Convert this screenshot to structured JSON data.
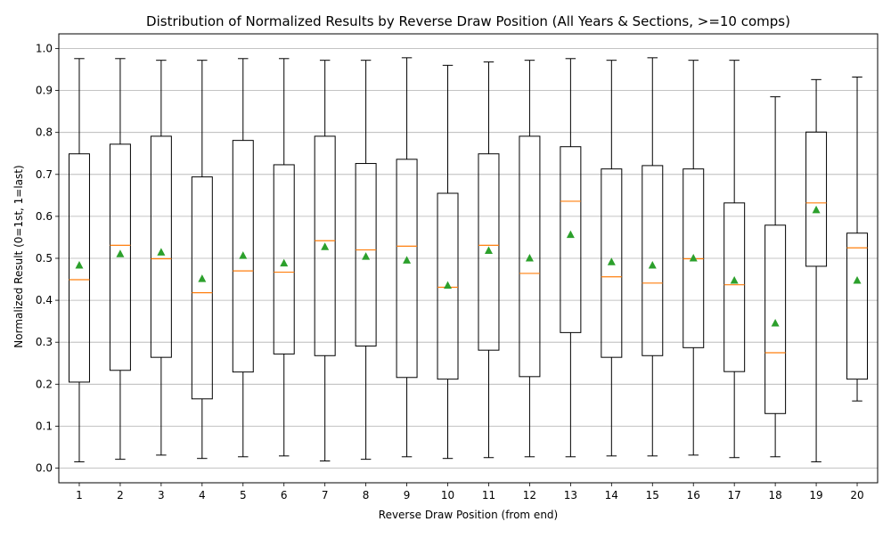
{
  "chart_data": {
    "type": "box",
    "title": "Distribution of Normalized Results by Reverse Draw Position (All Years & Sections, >=10 comps)",
    "xlabel": "Reverse Draw Position (from end)",
    "ylabel": "Normalized Result (0=1st, 1=last)",
    "ylim": [
      -0.035,
      1.035
    ],
    "yticks": [
      "0.0",
      "0.1",
      "0.2",
      "0.3",
      "0.4",
      "0.5",
      "0.6",
      "0.7",
      "0.8",
      "0.9",
      "1.0"
    ],
    "grid": "horizontal",
    "colors": {
      "box": "#000000",
      "median": "#ff7f0e",
      "mean": "#2ca02c",
      "grid": "#b0b0b0"
    },
    "categories": [
      "1",
      "2",
      "3",
      "4",
      "5",
      "6",
      "7",
      "8",
      "9",
      "10",
      "11",
      "12",
      "13",
      "14",
      "15",
      "16",
      "17",
      "18",
      "19",
      "20"
    ],
    "boxes": [
      {
        "whisker_low": 0.015,
        "q1": 0.205,
        "median": 0.449,
        "q3": 0.749,
        "whisker_high": 0.976,
        "mean": 0.483
      },
      {
        "whisker_low": 0.021,
        "q1": 0.233,
        "median": 0.531,
        "q3": 0.772,
        "whisker_high": 0.976,
        "mean": 0.51
      },
      {
        "whisker_low": 0.031,
        "q1": 0.264,
        "median": 0.499,
        "q3": 0.791,
        "whisker_high": 0.972,
        "mean": 0.514
      },
      {
        "whisker_low": 0.023,
        "q1": 0.165,
        "median": 0.418,
        "q3": 0.694,
        "whisker_high": 0.972,
        "mean": 0.451
      },
      {
        "whisker_low": 0.027,
        "q1": 0.229,
        "median": 0.47,
        "q3": 0.781,
        "whisker_high": 0.976,
        "mean": 0.506
      },
      {
        "whisker_low": 0.029,
        "q1": 0.272,
        "median": 0.467,
        "q3": 0.723,
        "whisker_high": 0.976,
        "mean": 0.488
      },
      {
        "whisker_low": 0.017,
        "q1": 0.268,
        "median": 0.542,
        "q3": 0.791,
        "whisker_high": 0.972,
        "mean": 0.527
      },
      {
        "whisker_low": 0.021,
        "q1": 0.291,
        "median": 0.52,
        "q3": 0.726,
        "whisker_high": 0.972,
        "mean": 0.504
      },
      {
        "whisker_low": 0.027,
        "q1": 0.216,
        "median": 0.529,
        "q3": 0.736,
        "whisker_high": 0.978,
        "mean": 0.495
      },
      {
        "whisker_low": 0.023,
        "q1": 0.212,
        "median": 0.431,
        "q3": 0.655,
        "whisker_high": 0.96,
        "mean": 0.435
      },
      {
        "whisker_low": 0.025,
        "q1": 0.281,
        "median": 0.531,
        "q3": 0.749,
        "whisker_high": 0.968,
        "mean": 0.518
      },
      {
        "whisker_low": 0.027,
        "q1": 0.218,
        "median": 0.464,
        "q3": 0.791,
        "whisker_high": 0.972,
        "mean": 0.5
      },
      {
        "whisker_low": 0.027,
        "q1": 0.323,
        "median": 0.636,
        "q3": 0.766,
        "whisker_high": 0.976,
        "mean": 0.556
      },
      {
        "whisker_low": 0.029,
        "q1": 0.264,
        "median": 0.456,
        "q3": 0.713,
        "whisker_high": 0.972,
        "mean": 0.491
      },
      {
        "whisker_low": 0.029,
        "q1": 0.268,
        "median": 0.441,
        "q3": 0.721,
        "whisker_high": 0.978,
        "mean": 0.483
      },
      {
        "whisker_low": 0.031,
        "q1": 0.287,
        "median": 0.499,
        "q3": 0.713,
        "whisker_high": 0.972,
        "mean": 0.5
      },
      {
        "whisker_low": 0.025,
        "q1": 0.23,
        "median": 0.437,
        "q3": 0.632,
        "whisker_high": 0.972,
        "mean": 0.447
      },
      {
        "whisker_low": 0.027,
        "q1": 0.13,
        "median": 0.275,
        "q3": 0.579,
        "whisker_high": 0.885,
        "mean": 0.345
      },
      {
        "whisker_low": 0.015,
        "q1": 0.481,
        "median": 0.632,
        "q3": 0.801,
        "whisker_high": 0.926,
        "mean": 0.615
      },
      {
        "whisker_low": 0.16,
        "q1": 0.212,
        "median": 0.525,
        "q3": 0.56,
        "whisker_high": 0.932,
        "mean": 0.447
      }
    ]
  }
}
